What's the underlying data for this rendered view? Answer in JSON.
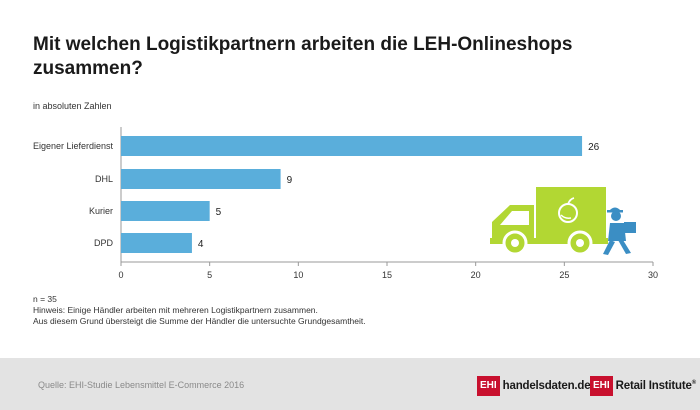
{
  "title": "Mit welchen Logistikpartnern arbeiten die LEH-Onlineshops zusammen?",
  "unit_label": "in absoluten Zahlen",
  "notes": [
    "n = 35",
    "Hinweis: Einige Händler arbeiten mit mehreren Logistikpartnern zusammen.",
    "Aus diesem Grund übersteigt die Summe der Händler die untersuchte Grundgesamtheit."
  ],
  "source": "Quelle: EHI-Studie Lebensmittel E-Commerce 2016",
  "logos": {
    "logo1_box": "EHI",
    "logo1_text": "handelsdaten.de",
    "logo2_box": "EHI",
    "logo2_text": "Retail Institute",
    "logo2_mark": "®"
  },
  "colors": {
    "bar": "#5aaedb",
    "truck": "#b2d733",
    "person": "#3b8ec4",
    "axis": "#888888"
  },
  "icons": [
    "delivery-truck-icon",
    "delivery-person-icon"
  ],
  "chart_data": {
    "type": "bar",
    "orientation": "horizontal",
    "categories": [
      "Eigener Lieferdienst",
      "DHL",
      "Kurier",
      "DPD"
    ],
    "values": [
      26,
      9,
      5,
      4
    ],
    "xlim": [
      0,
      30
    ],
    "xticks": [
      "0",
      "5",
      "10",
      "15",
      "20",
      "25",
      "30"
    ],
    "grid": false
  }
}
